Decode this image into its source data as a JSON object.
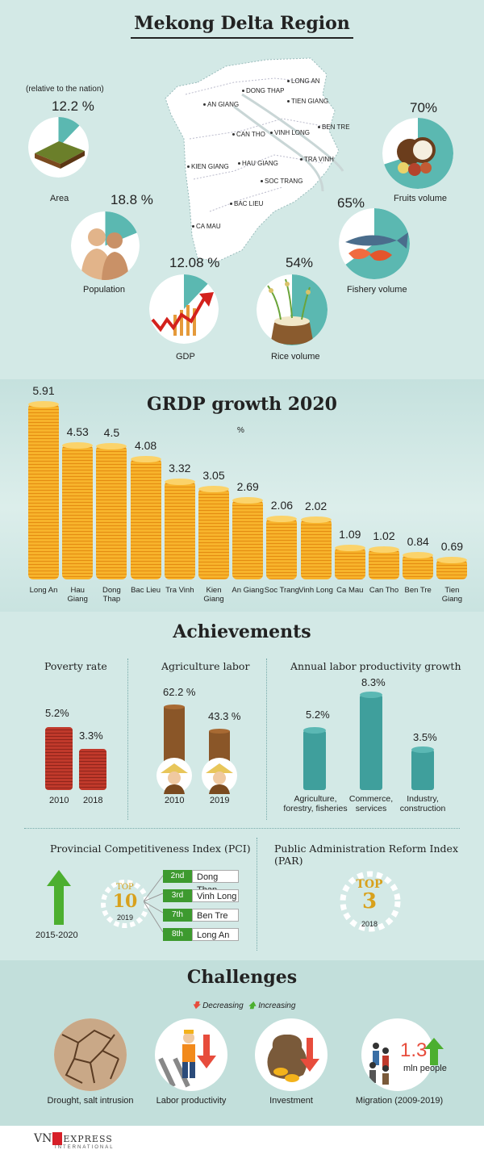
{
  "header": {
    "title": "Mekong Delta Region",
    "relative_note": "(relative to the nation)"
  },
  "overview": [
    {
      "label": "Area",
      "value": "12.2 %",
      "fraction": 0.122,
      "icon": "rice-field-icon"
    },
    {
      "label": "Population",
      "value": "18.8 %",
      "fraction": 0.188,
      "icon": "people-silhouette-icon"
    },
    {
      "label": "GDP",
      "value": "12.08 %",
      "fraction": 0.1208,
      "icon": "growth-arrow-icon"
    },
    {
      "label": "Rice volume",
      "value": "54%",
      "fraction": 0.54,
      "icon": "rice-sack-icon"
    },
    {
      "label": "Fishery volume",
      "value": "65%",
      "fraction": 0.65,
      "icon": "fish-shrimp-icon"
    },
    {
      "label": "Fruits volume",
      "value": "70%",
      "fraction": 0.7,
      "icon": "coconut-fruit-icon"
    }
  ],
  "map": {
    "provinces": [
      "LONG AN",
      "DONG THAP",
      "AN GIANG",
      "TIEN GIANG",
      "BEN TRE",
      "CAN THO",
      "VINH LONG",
      "KIEN GIANG",
      "HAU GIANG",
      "TRA VINH",
      "SOC TRANG",
      "BAC LIEU",
      "CA MAU"
    ]
  },
  "grdp": {
    "title": "GRDP growth 2020",
    "unit": "%"
  },
  "chart_data": {
    "type": "bar",
    "title": "GRDP growth 2020",
    "ylabel": "%",
    "categories": [
      "Long An",
      "Hau Giang",
      "Dong Thap",
      "Bac Lieu",
      "Tra Vinh",
      "Kien Giang",
      "An Giang",
      "Soc Trang",
      "Vinh Long",
      "Ca Mau",
      "Can Tho",
      "Ben Tre",
      "Tien Giang"
    ],
    "values": [
      5.91,
      4.53,
      4.5,
      4.08,
      3.32,
      3.05,
      2.69,
      2.06,
      2.02,
      1.09,
      1.02,
      0.84,
      0.69
    ],
    "value_labels": [
      "5.91",
      "4.53",
      "4.5",
      "4.08",
      "3.32",
      "3.05",
      "2.69",
      "2.06",
      "2.02",
      "1.09",
      "1.02",
      "0.84",
      "0.69"
    ],
    "ylim": [
      0,
      6
    ]
  },
  "achievements": {
    "title": "Achievements",
    "poverty": {
      "heading": "Poverty rate",
      "items": [
        {
          "year": "2010",
          "value": "5.2%",
          "num": 5.2
        },
        {
          "year": "2018",
          "value": "3.3%",
          "num": 3.3
        }
      ]
    },
    "agri_labor": {
      "heading": "Agriculture labor",
      "items": [
        {
          "year": "2010",
          "value": "62.2 %",
          "num": 62.2
        },
        {
          "year": "2019",
          "value": "43.3 %",
          "num": 43.3
        }
      ]
    },
    "productivity": {
      "heading": "Annual labor productivity growth",
      "items": [
        {
          "sector": "Agriculture, forestry, fisheries",
          "value": "5.2%",
          "num": 5.2
        },
        {
          "sector": "Commerce, services",
          "value": "8.3%",
          "num": 8.3
        },
        {
          "sector": "Industry, construction",
          "value": "3.5%",
          "num": 3.5
        }
      ]
    },
    "pci": {
      "heading": "Provincial Competitiveness Index (PCI)",
      "period": "2015-2020",
      "badge_top": "TOP",
      "badge_num": "10",
      "badge_year": "2019",
      "ranks": [
        {
          "rank": "2nd",
          "province": "Dong Thap"
        },
        {
          "rank": "3rd",
          "province": "Vinh Long"
        },
        {
          "rank": "7th",
          "province": "Ben Tre"
        },
        {
          "rank": "8th",
          "province": "Long An"
        }
      ]
    },
    "par": {
      "heading": "Public Administration Reform Index (PAR)",
      "badge_top": "TOP",
      "badge_num": "3",
      "badge_year": "2018"
    }
  },
  "challenges": {
    "title": "Challenges",
    "legend_decreasing": "Decreasing",
    "legend_increasing": "Increasing",
    "items": [
      {
        "label": "Drought, salt intrusion",
        "icon": "cracked-earth-icon"
      },
      {
        "label": "Labor productivity",
        "icon": "worker-ladder-icon",
        "trend": "decreasing"
      },
      {
        "label": "Investment",
        "icon": "money-bag-icon",
        "trend": "decreasing"
      },
      {
        "label": "Migration (2009-2019)",
        "icon": "migrants-icon",
        "trend": "increasing",
        "value": "1.3",
        "unit": "mln people"
      }
    ]
  },
  "footer": {
    "brand_vn": "VN",
    "brand_express": "EXPRESS",
    "brand_intl": "INTERNATIONAL"
  },
  "colors": {
    "background": "#d3e9e6",
    "pie_teal": "#5bb8b1",
    "bar_gold": "#f7b32b",
    "poverty_red": "#c0392b",
    "productivity_teal": "#3f9f9c",
    "increase_green": "#4caf2f",
    "decrease_red": "#e74c3c",
    "brand_red": "#d71f28"
  }
}
